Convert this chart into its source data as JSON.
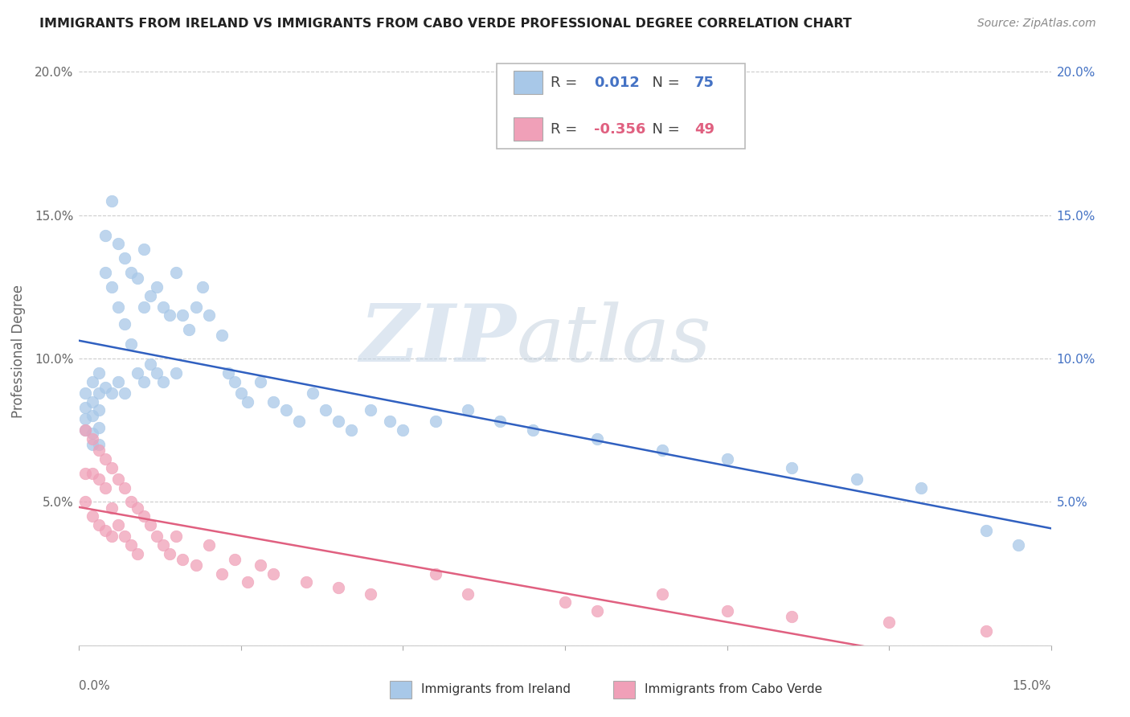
{
  "title": "IMMIGRANTS FROM IRELAND VS IMMIGRANTS FROM CABO VERDE PROFESSIONAL DEGREE CORRELATION CHART",
  "source": "Source: ZipAtlas.com",
  "ylabel": "Professional Degree",
  "yticks": [
    0.0,
    0.05,
    0.1,
    0.15,
    0.2
  ],
  "ytick_labels": [
    "",
    "5.0%",
    "10.0%",
    "15.0%",
    "20.0%"
  ],
  "xlim": [
    0.0,
    0.15
  ],
  "ylim": [
    0.0,
    0.205
  ],
  "ireland_color": "#a8c8e8",
  "cabo_color": "#f0a0b8",
  "ireland_line_color": "#3060c0",
  "cabo_line_color": "#e06080",
  "legend_ireland_label": "Immigrants from Ireland",
  "legend_cabo_label": "Immigrants from Cabo Verde",
  "ireland_R": 0.012,
  "ireland_N": 75,
  "cabo_R": -0.356,
  "cabo_N": 49,
  "watermark_zip": "ZIP",
  "watermark_atlas": "atlas",
  "ireland_scatter_x": [
    0.001,
    0.001,
    0.001,
    0.001,
    0.002,
    0.002,
    0.002,
    0.002,
    0.002,
    0.003,
    0.003,
    0.003,
    0.003,
    0.003,
    0.004,
    0.004,
    0.004,
    0.005,
    0.005,
    0.005,
    0.006,
    0.006,
    0.006,
    0.007,
    0.007,
    0.007,
    0.008,
    0.008,
    0.009,
    0.009,
    0.01,
    0.01,
    0.01,
    0.011,
    0.011,
    0.012,
    0.012,
    0.013,
    0.013,
    0.014,
    0.015,
    0.015,
    0.016,
    0.017,
    0.018,
    0.019,
    0.02,
    0.022,
    0.023,
    0.024,
    0.025,
    0.026,
    0.028,
    0.03,
    0.032,
    0.034,
    0.036,
    0.038,
    0.04,
    0.042,
    0.045,
    0.048,
    0.05,
    0.055,
    0.06,
    0.065,
    0.07,
    0.08,
    0.09,
    0.1,
    0.11,
    0.12,
    0.13,
    0.14,
    0.145
  ],
  "ireland_scatter_y": [
    0.088,
    0.083,
    0.079,
    0.075,
    0.092,
    0.085,
    0.08,
    0.074,
    0.07,
    0.095,
    0.088,
    0.082,
    0.076,
    0.07,
    0.143,
    0.13,
    0.09,
    0.155,
    0.125,
    0.088,
    0.14,
    0.118,
    0.092,
    0.135,
    0.112,
    0.088,
    0.13,
    0.105,
    0.128,
    0.095,
    0.138,
    0.118,
    0.092,
    0.122,
    0.098,
    0.125,
    0.095,
    0.118,
    0.092,
    0.115,
    0.13,
    0.095,
    0.115,
    0.11,
    0.118,
    0.125,
    0.115,
    0.108,
    0.095,
    0.092,
    0.088,
    0.085,
    0.092,
    0.085,
    0.082,
    0.078,
    0.088,
    0.082,
    0.078,
    0.075,
    0.082,
    0.078,
    0.075,
    0.078,
    0.082,
    0.078,
    0.075,
    0.072,
    0.068,
    0.065,
    0.062,
    0.058,
    0.055,
    0.04,
    0.035
  ],
  "cabo_scatter_x": [
    0.001,
    0.001,
    0.001,
    0.002,
    0.002,
    0.002,
    0.003,
    0.003,
    0.003,
    0.004,
    0.004,
    0.004,
    0.005,
    0.005,
    0.005,
    0.006,
    0.006,
    0.007,
    0.007,
    0.008,
    0.008,
    0.009,
    0.009,
    0.01,
    0.011,
    0.012,
    0.013,
    0.014,
    0.015,
    0.016,
    0.018,
    0.02,
    0.022,
    0.024,
    0.026,
    0.028,
    0.03,
    0.035,
    0.04,
    0.045,
    0.055,
    0.06,
    0.075,
    0.08,
    0.09,
    0.1,
    0.11,
    0.125,
    0.14
  ],
  "cabo_scatter_y": [
    0.075,
    0.06,
    0.05,
    0.072,
    0.06,
    0.045,
    0.068,
    0.058,
    0.042,
    0.065,
    0.055,
    0.04,
    0.062,
    0.048,
    0.038,
    0.058,
    0.042,
    0.055,
    0.038,
    0.05,
    0.035,
    0.048,
    0.032,
    0.045,
    0.042,
    0.038,
    0.035,
    0.032,
    0.038,
    0.03,
    0.028,
    0.035,
    0.025,
    0.03,
    0.022,
    0.028,
    0.025,
    0.022,
    0.02,
    0.018,
    0.025,
    0.018,
    0.015,
    0.012,
    0.018,
    0.012,
    0.01,
    0.008,
    0.005
  ]
}
